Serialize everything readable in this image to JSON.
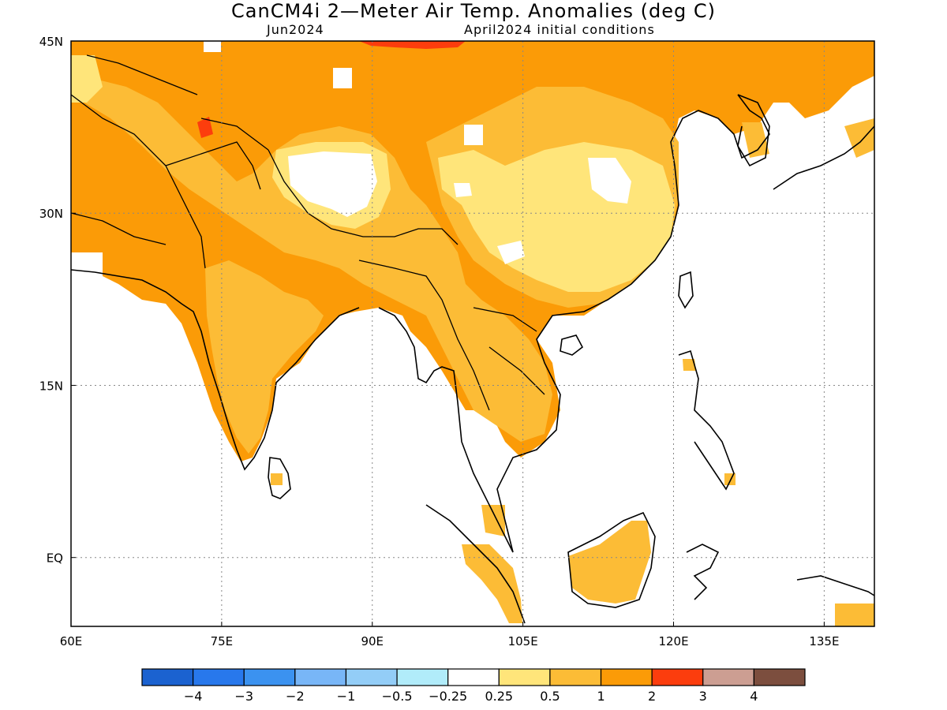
{
  "title": "CanCM4i 2—Meter Air Temp. Anomalies (deg C)",
  "subtitle_left": "Jun2024",
  "subtitle_right": "April2024 initial conditions",
  "map": {
    "lon_range": [
      60,
      140
    ],
    "lat_range": [
      -6,
      45
    ],
    "lon_ticks": [
      {
        "value": 60,
        "label": "60E"
      },
      {
        "value": 75,
        "label": "75E"
      },
      {
        "value": 90,
        "label": "90E"
      },
      {
        "value": 105,
        "label": "105E"
      },
      {
        "value": 120,
        "label": "120E"
      },
      {
        "value": 135,
        "label": "135E"
      }
    ],
    "lat_ticks": [
      {
        "value": 45,
        "label": "45N"
      },
      {
        "value": 30,
        "label": "30N"
      },
      {
        "value": 15,
        "label": "15N"
      },
      {
        "value": 0,
        "label": "EQ"
      }
    ],
    "gridlines": "dotted"
  },
  "colorbar": {
    "colors": [
      "#1b62d0",
      "#2878ec",
      "#3b92f0",
      "#78b6f7",
      "#93cdf7",
      "#b1ecfa",
      "#ffffff",
      "#ffe57a",
      "#fcbc36",
      "#fb9b07",
      "#fc3d0d",
      "#cc9e92",
      "#7c4e3e"
    ],
    "labels": [
      "−4",
      "−3",
      "−2",
      "−1",
      "−0.5",
      "−0.25",
      "0.25",
      "0.5",
      "1",
      "2",
      "3",
      "4"
    ]
  }
}
